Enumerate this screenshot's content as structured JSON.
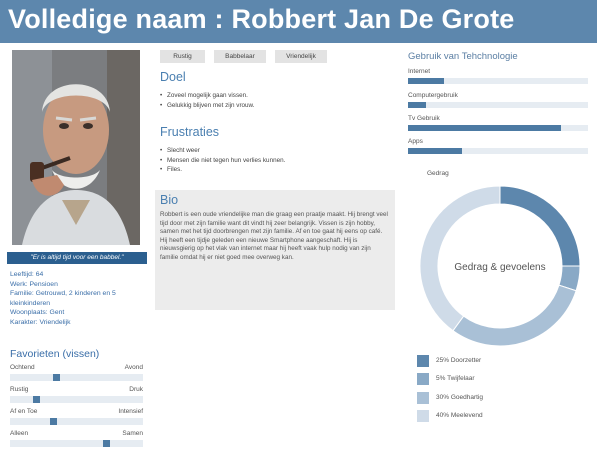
{
  "header": {
    "title": "Volledige naam : Robbert Jan De Grote"
  },
  "profile": {
    "quote": "\"Er is altijd tijd voor een babbel.\"",
    "info": [
      "Leeftijd: 64",
      "Werk: Pensioen",
      "Familie: Getrouwd, 2 kinderen en 5 kleinkinderen",
      "Woonplaats: Gent",
      "Karakter: Vriendelijk"
    ]
  },
  "favorites": {
    "title": "Favorieten (vissen)",
    "sliders": [
      {
        "left": "Ochtend",
        "right": "Avond",
        "value": 0.34
      },
      {
        "left": "Rustig",
        "right": "Druk",
        "value": 0.18
      },
      {
        "left": "Af en Toe",
        "right": "Intensief",
        "value": 0.32
      },
      {
        "left": "Alleen",
        "right": "Samen",
        "value": 0.74
      }
    ]
  },
  "tags": [
    "Rustig",
    "Babbelaar",
    "Vriendelijk"
  ],
  "goals": {
    "title": "Doel",
    "items": [
      "Zoveel mogelijk gaan vissen.",
      "Gelukkig blijven met zijn vrouw."
    ]
  },
  "frustrations": {
    "title": "Frustraties",
    "items": [
      "Slecht weer",
      "Mensen die niet tegen hun verlies kunnen.",
      "Files."
    ]
  },
  "bio": {
    "title": "Bio",
    "text": "Robbert is een oude vriendelijke man die graag een praatje maakt. Hij brengt veel tijd door met zijn familie want dit vindt hij zeer belangrijk. Vissen is zijn hobby, samen met het tijd doorbrengen met zijn familie. Af en toe gaat hij eens op café. Hij heeft een tijdje geleden een nieuwe Smartphone aangeschaft. Hij is nieuwsgierig op het vlak van internet maar hij heeft vaak hulp nodig van zijn familie omdat hij er niet goed mee overweg kan."
  },
  "tech": {
    "title": "Gebruik van Tehchnologie",
    "bars": [
      {
        "label": "Internet",
        "value": 0.2
      },
      {
        "label": "Computergebruik",
        "value": 0.1
      },
      {
        "label": "Tv Gebruik",
        "value": 0.85
      },
      {
        "label": "Apps",
        "value": 0.3
      }
    ]
  },
  "chart_data": {
    "type": "pie",
    "title": "Gedrag",
    "center_label": "Gedrag & gevoelens",
    "categories": [
      "Doorzetter",
      "Twijfelaar",
      "Goedhartig",
      "Meelevend"
    ],
    "values": [
      25,
      5,
      30,
      40
    ],
    "legend_text": [
      "25% Doorzetter",
      "5% Twijfelaar",
      "30% Goedhartig",
      "40% Meelevend"
    ],
    "colors": [
      "#5d87ad",
      "#89a9c6",
      "#a9c0d6",
      "#cfdbe8"
    ],
    "legend_position": "bottom"
  }
}
